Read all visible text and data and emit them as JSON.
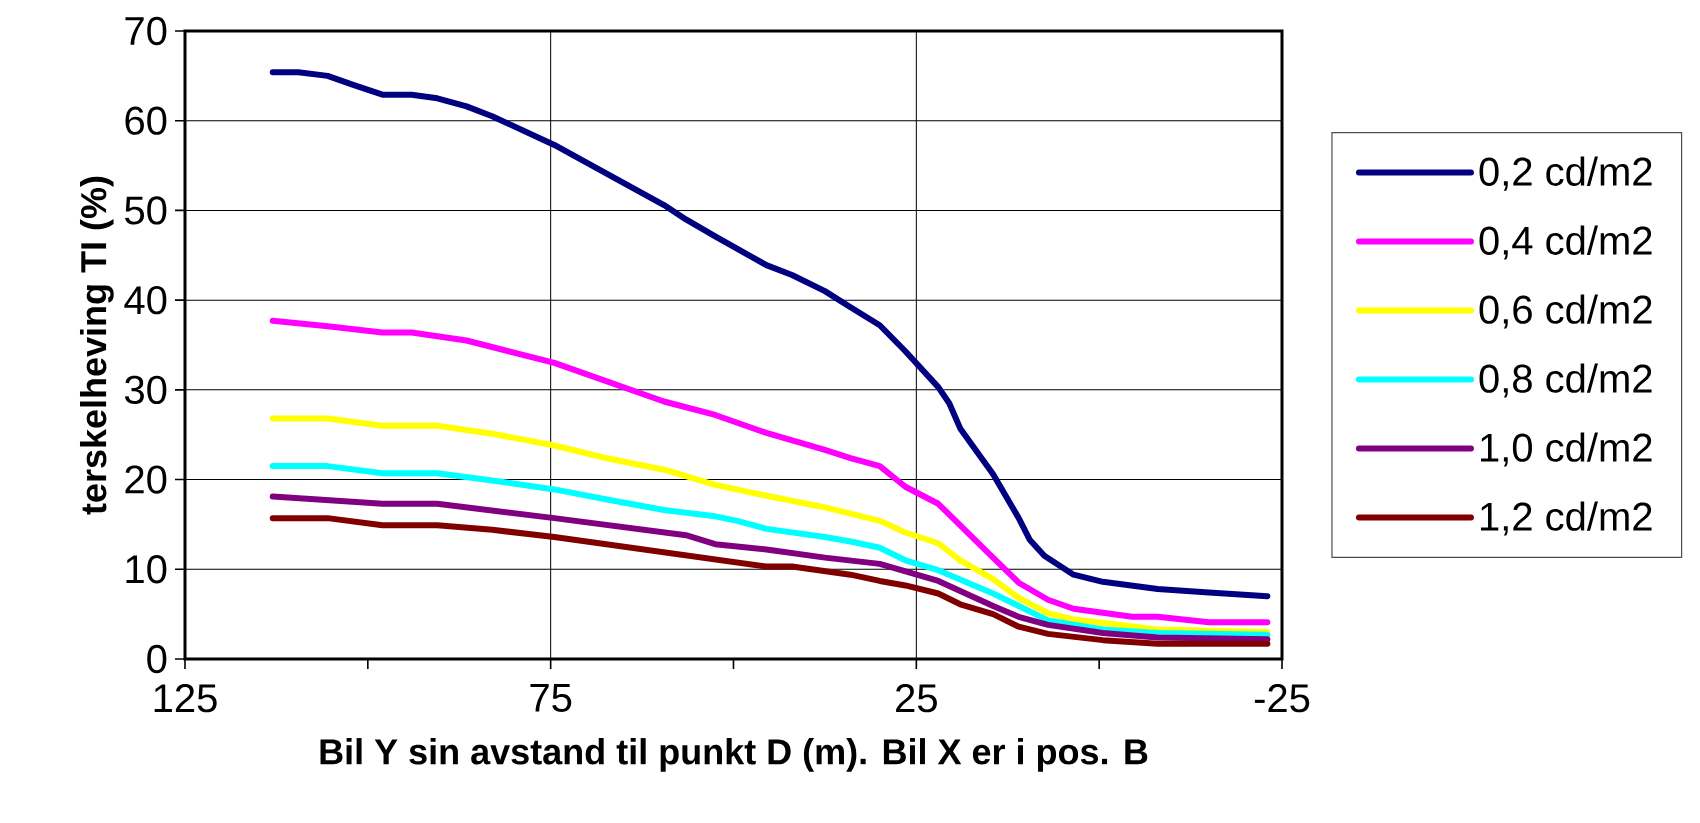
{
  "chart_data": {
    "type": "line",
    "xlabel": "Bil Y sin avstand til punkt D (m). Bil X er i pos. B",
    "ylabel": "terskelheving TI (%)",
    "xlim": [
      125,
      -25
    ],
    "xticks": [
      125,
      {
        "value": 100,
        "label": null
      },
      75,
      {
        "value": 50,
        "label": null
      },
      25,
      {
        "value": 0,
        "label": null
      },
      -25
    ],
    "ylim": [
      0,
      70
    ],
    "yticks": [
      0,
      10,
      20,
      30,
      40,
      50,
      60,
      70
    ],
    "grid": true,
    "legend": "right",
    "line_style": "solid",
    "marker": "none",
    "series": [
      {
        "name": "0,2 cd/m2",
        "color": "#000080",
        "x": [
          113,
          109.5,
          105.5,
          102,
          98,
          94,
          90.5,
          86.5,
          83,
          74.5,
          59.5,
          56.5,
          52.5,
          45.5,
          42,
          37.5,
          34,
          30,
          26.5,
          22,
          20.5,
          19,
          14.5,
          11,
          9.5,
          7.5,
          3.5,
          -0.5,
          -8,
          -15,
          -23
        ],
        "values": [
          65.4,
          65.4,
          65,
          64,
          62.9,
          62.9,
          62.5,
          61.6,
          60.5,
          57.3,
          50.6,
          49,
          47.1,
          43.9,
          42.8,
          41,
          39.2,
          37.2,
          34.3,
          30.3,
          28.5,
          25.7,
          20.6,
          15.7,
          13.3,
          11.5,
          9.4,
          8.6,
          7.8,
          7.4,
          7.0
        ]
      },
      {
        "name": "0,4 cd/m2",
        "color": "#ff00ff",
        "x": [
          113,
          105.5,
          98,
          94,
          86.5,
          74.5,
          59.5,
          52.5,
          45.5,
          37.5,
          34,
          30,
          26.5,
          22,
          15,
          11,
          7,
          3.5,
          -4.5,
          -8,
          -15,
          -23
        ],
        "values": [
          37.7,
          37.1,
          36.4,
          36.4,
          35.5,
          33.0,
          28.7,
          27.2,
          25.2,
          23.3,
          22.4,
          21.5,
          19.2,
          17.3,
          11.7,
          8.5,
          6.6,
          5.6,
          4.7,
          4.7,
          4.1,
          4.1
        ]
      },
      {
        "name": "0,6 cd/m2",
        "color": "#ffff00",
        "x": [
          113,
          105.5,
          98,
          90.5,
          83,
          74.5,
          67.5,
          59.5,
          52.5,
          45.5,
          37.5,
          30,
          26.5,
          22,
          19,
          14.5,
          11,
          7,
          3.5,
          -8,
          -23
        ],
        "values": [
          26.8,
          26.8,
          26,
          26,
          25.1,
          23.8,
          22.4,
          21.1,
          19.4,
          18.2,
          16.9,
          15.4,
          14.1,
          12.9,
          11.0,
          8.9,
          6.8,
          5.1,
          4.4,
          3.3,
          3.0
        ]
      },
      {
        "name": "0,8 cd/m2",
        "color": "#00ffff",
        "x": [
          113,
          105.5,
          98,
          90.5,
          83,
          74.5,
          67.5,
          59.5,
          52.5,
          49.5,
          45.5,
          37.5,
          34,
          30,
          26.5,
          22,
          14.5,
          11,
          7,
          -0.5,
          -8,
          -23
        ],
        "values": [
          21.5,
          21.5,
          20.7,
          20.7,
          19.9,
          18.9,
          17.8,
          16.6,
          15.9,
          15.4,
          14.5,
          13.6,
          13.1,
          12.4,
          11.0,
          9.9,
          7.3,
          5.9,
          4.3,
          3.3,
          2.9,
          2.7
        ]
      },
      {
        "name": "1,0 cd/m2",
        "color": "#800080",
        "x": [
          113,
          98,
          90.5,
          74.5,
          56.5,
          52.5,
          45.5,
          37.5,
          30,
          22,
          14.5,
          11,
          7,
          -0.5,
          -8,
          -23
        ],
        "values": [
          18.1,
          17.3,
          17.3,
          15.7,
          13.8,
          12.8,
          12.2,
          11.3,
          10.6,
          8.7,
          5.9,
          4.7,
          3.8,
          2.9,
          2.4,
          2.2
        ]
      },
      {
        "name": "1,2 cd/m2",
        "color": "#800000",
        "x": [
          113,
          105.5,
          98,
          90.5,
          83,
          74.5,
          45.5,
          42,
          34,
          30,
          26.5,
          22,
          19,
          14.5,
          11,
          7,
          -0.5,
          -8,
          -23
        ],
        "values": [
          15.7,
          15.7,
          14.9,
          14.9,
          14.4,
          13.6,
          10.3,
          10.3,
          9.4,
          8.7,
          8.2,
          7.3,
          6.1,
          5.0,
          3.6,
          2.8,
          2.1,
          1.7,
          1.7
        ]
      }
    ]
  }
}
